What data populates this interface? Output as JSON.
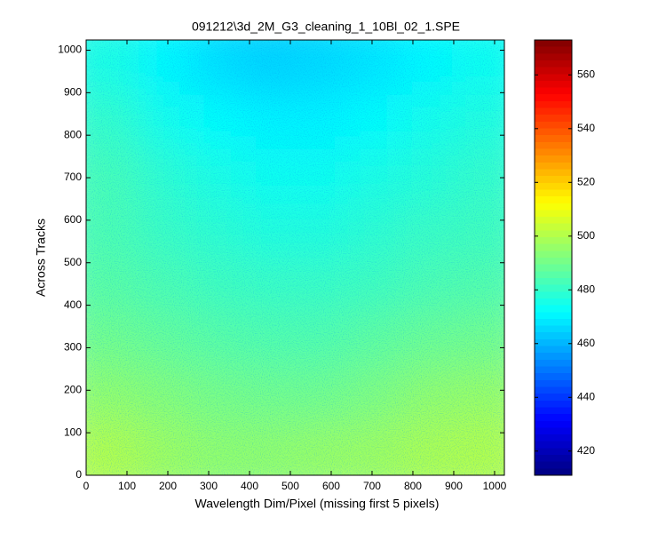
{
  "chart_data": {
    "type": "heatmap",
    "title": "091212\\3d_2M_G3_cleaning_1_10Bl_02_1.SPE",
    "xlabel": "Wavelength Dim/Pixel (missing first 5 pixels)",
    "ylabel": "Across Tracks",
    "colormap": "jet",
    "x_bins": [
      0,
      128,
      256,
      384,
      512,
      640,
      768,
      896,
      1024
    ],
    "y_bins": [
      0,
      128,
      256,
      384,
      512,
      640,
      768,
      896,
      1024
    ],
    "values": [
      [
        500,
        497,
        495,
        495,
        496,
        497,
        499,
        500
      ],
      [
        495,
        493,
        491,
        490,
        490,
        492,
        495,
        496
      ],
      [
        490,
        488,
        486,
        485,
        485,
        487,
        489,
        490
      ],
      [
        486,
        484,
        482,
        481,
        481,
        482,
        484,
        485
      ],
      [
        484,
        481,
        479,
        477,
        477,
        479,
        481,
        482
      ],
      [
        483,
        479,
        476,
        474,
        474,
        476,
        478,
        480
      ],
      [
        480,
        475,
        472,
        470,
        470,
        472,
        475,
        477
      ],
      [
        476,
        471,
        467,
        465,
        466,
        468,
        471,
        474
      ]
    ],
    "xlim": [
      0,
      1024
    ],
    "ylim": [
      0,
      1024
    ],
    "xticks": [
      0,
      100,
      200,
      300,
      400,
      500,
      600,
      700,
      800,
      900,
      1000
    ],
    "yticks": [
      0,
      100,
      200,
      300,
      400,
      500,
      600,
      700,
      800,
      900,
      1000
    ],
    "clim": [
      411,
      573
    ],
    "cticks": [
      420,
      440,
      460,
      480,
      500,
      520,
      540,
      560
    ]
  }
}
